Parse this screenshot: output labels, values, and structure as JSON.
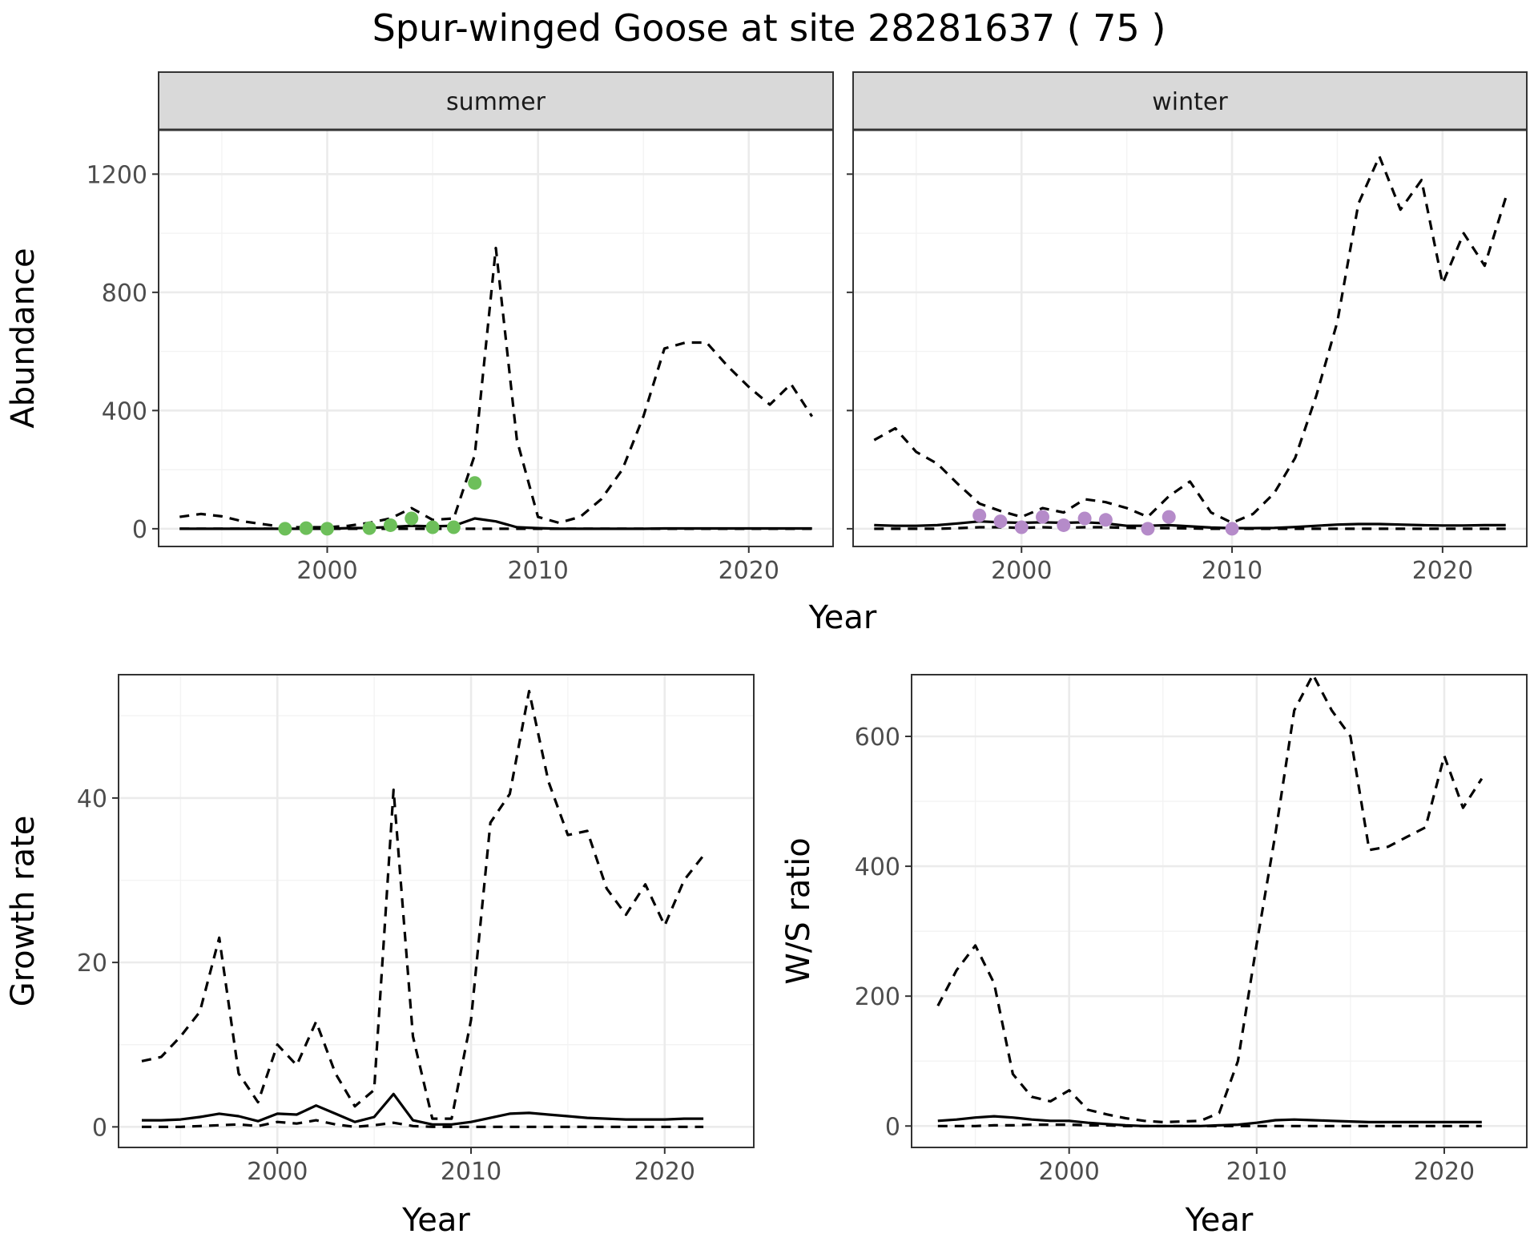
{
  "title": "Spur-winged Goose at site 28281637 ( 75 )",
  "colors": {
    "summer_points": "#6dbf5a",
    "winter_points": "#b58bc9",
    "lines": "#000000"
  },
  "chart_data": [
    {
      "type": "line",
      "facet": "summer",
      "xlabel": "Year",
      "ylabel": "Abundance",
      "xlim": [
        1992,
        2024
      ],
      "ylim": [
        -60,
        1350
      ],
      "xticks": [
        2000,
        2010,
        2020
      ],
      "yticks": [
        0,
        400,
        800,
        1200
      ],
      "grid": true,
      "series": [
        {
          "style": "dashed",
          "x": [
            1993,
            1994,
            1995,
            1996,
            1997,
            1998,
            1999,
            2000,
            2001,
            2002,
            2003,
            2004,
            2005,
            2006,
            2007,
            2008,
            2009,
            2010,
            2011,
            2012,
            2013,
            2014,
            2015,
            2016,
            2017,
            2018,
            2019,
            2020,
            2021,
            2022,
            2023
          ],
          "y": [
            40,
            50,
            42,
            25,
            15,
            5,
            5,
            5,
            10,
            20,
            35,
            70,
            30,
            35,
            250,
            950,
            300,
            40,
            20,
            40,
            100,
            200,
            380,
            610,
            630,
            630,
            550,
            480,
            420,
            490,
            380
          ]
        },
        {
          "style": "solid",
          "x": [
            1993,
            1994,
            1995,
            1996,
            1997,
            1998,
            1999,
            2000,
            2001,
            2002,
            2003,
            2004,
            2005,
            2006,
            2007,
            2008,
            2009,
            2010,
            2011,
            2012,
            2013,
            2014,
            2015,
            2016,
            2017,
            2018,
            2019,
            2020,
            2021,
            2022,
            2023
          ],
          "y": [
            0,
            0,
            0,
            0,
            0,
            0,
            0,
            0,
            2,
            3,
            6,
            10,
            8,
            10,
            35,
            25,
            5,
            2,
            0,
            0,
            0,
            0,
            0,
            1,
            1,
            1,
            1,
            1,
            1,
            1,
            1
          ]
        },
        {
          "style": "dashed",
          "x": [
            1993,
            1994,
            1995,
            1996,
            1997,
            1998,
            1999,
            2000,
            2001,
            2002,
            2003,
            2004,
            2005,
            2006,
            2007,
            2008,
            2009,
            2010,
            2011,
            2012,
            2013,
            2014,
            2015,
            2016,
            2017,
            2018,
            2019,
            2020,
            2021,
            2022,
            2023
          ],
          "y": [
            0,
            0,
            0,
            0,
            0,
            0,
            0,
            0,
            0,
            0,
            0,
            0,
            0,
            0,
            0,
            0,
            0,
            0,
            0,
            0,
            0,
            0,
            0,
            0,
            0,
            0,
            0,
            0,
            0,
            0,
            0
          ]
        }
      ],
      "points": {
        "x": [
          1998,
          1999,
          2000,
          2002,
          2003,
          2004,
          2005,
          2006,
          2007
        ],
        "y": [
          0,
          2,
          0,
          2,
          12,
          35,
          5,
          5,
          155
        ]
      }
    },
    {
      "type": "line",
      "facet": "winter",
      "xlabel": "Year",
      "ylabel": "",
      "xlim": [
        1992,
        2024
      ],
      "ylim": [
        -60,
        1350
      ],
      "xticks": [
        2000,
        2010,
        2020
      ],
      "yticks": [
        0,
        400,
        800,
        1200
      ],
      "grid": true,
      "series": [
        {
          "style": "dashed",
          "x": [
            1993,
            1994,
            1995,
            1996,
            1997,
            1998,
            1999,
            2000,
            2001,
            2002,
            2003,
            2004,
            2005,
            2006,
            2007,
            2008,
            2009,
            2010,
            2011,
            2012,
            2013,
            2014,
            2015,
            2016,
            2017,
            2018,
            2019,
            2020,
            2021,
            2022,
            2023
          ],
          "y": [
            300,
            340,
            260,
            220,
            150,
            85,
            60,
            40,
            70,
            55,
            100,
            90,
            70,
            40,
            110,
            160,
            55,
            20,
            50,
            120,
            240,
            450,
            700,
            1100,
            1260,
            1080,
            1180,
            830,
            1000,
            890,
            1120
          ]
        },
        {
          "style": "solid",
          "x": [
            1993,
            1994,
            1995,
            1996,
            1997,
            1998,
            1999,
            2000,
            2001,
            2002,
            2003,
            2004,
            2005,
            2006,
            2007,
            2008,
            2009,
            2010,
            2011,
            2012,
            2013,
            2014,
            2015,
            2016,
            2017,
            2018,
            2019,
            2020,
            2021,
            2022,
            2023
          ],
          "y": [
            12,
            10,
            10,
            12,
            18,
            25,
            22,
            20,
            22,
            20,
            22,
            18,
            10,
            10,
            12,
            8,
            4,
            2,
            2,
            3,
            6,
            10,
            14,
            16,
            16,
            14,
            12,
            11,
            11,
            12,
            12
          ]
        },
        {
          "style": "dashed",
          "x": [
            1993,
            1994,
            1995,
            1996,
            1997,
            1998,
            1999,
            2000,
            2001,
            2002,
            2003,
            2004,
            2005,
            2006,
            2007,
            2008,
            2009,
            2010,
            2011,
            2012,
            2013,
            2014,
            2015,
            2016,
            2017,
            2018,
            2019,
            2020,
            2021,
            2022,
            2023
          ],
          "y": [
            0,
            0,
            0,
            0,
            2,
            5,
            5,
            3,
            5,
            3,
            5,
            5,
            3,
            2,
            2,
            1,
            0,
            0,
            0,
            0,
            0,
            0,
            0,
            0,
            0,
            0,
            0,
            0,
            0,
            0,
            0
          ]
        }
      ],
      "points": {
        "x": [
          1998,
          1999,
          2000,
          2001,
          2002,
          2003,
          2004,
          2006,
          2007,
          2010
        ],
        "y": [
          45,
          25,
          5,
          40,
          12,
          35,
          30,
          0,
          40,
          0
        ]
      }
    },
    {
      "type": "line",
      "xlabel": "Year",
      "ylabel": "Growth rate",
      "xlim": [
        1991.8,
        2024.6
      ],
      "ylim": [
        -2.5,
        55
      ],
      "xticks": [
        2000,
        2010,
        2020
      ],
      "yticks": [
        0,
        20,
        40
      ],
      "grid": true,
      "series": [
        {
          "style": "dashed",
          "x": [
            1993,
            1994,
            1995,
            1996,
            1997,
            1998,
            1999,
            2000,
            2001,
            2002,
            2003,
            2004,
            2005,
            2006,
            2007,
            2008,
            2009,
            2010,
            2011,
            2012,
            2013,
            2014,
            2015,
            2016,
            2017,
            2018,
            2019,
            2020,
            2021,
            2022
          ],
          "y": [
            8,
            8.5,
            11,
            14,
            23,
            6.5,
            3,
            10,
            7.5,
            12.8,
            6.5,
            2.5,
            4.5,
            41,
            11,
            1,
            1,
            13,
            37,
            40.5,
            53,
            42,
            35.5,
            36,
            29,
            25.8,
            29.5,
            24.5,
            30,
            33
          ]
        },
        {
          "style": "solid",
          "x": [
            1993,
            1994,
            1995,
            1996,
            1997,
            1998,
            1999,
            2000,
            2001,
            2002,
            2003,
            2004,
            2005,
            2006,
            2007,
            2008,
            2009,
            2010,
            2011,
            2012,
            2013,
            2014,
            2015,
            2016,
            2017,
            2018,
            2019,
            2020,
            2021,
            2022
          ],
          "y": [
            0.8,
            0.8,
            0.9,
            1.2,
            1.6,
            1.3,
            0.7,
            1.6,
            1.5,
            2.6,
            1.6,
            0.6,
            1.2,
            4,
            0.8,
            0.3,
            0.3,
            0.6,
            1.1,
            1.6,
            1.7,
            1.5,
            1.3,
            1.1,
            1,
            0.9,
            0.9,
            0.9,
            1,
            1
          ]
        },
        {
          "style": "dashed",
          "x": [
            1993,
            1994,
            1995,
            1996,
            1997,
            1998,
            1999,
            2000,
            2001,
            2002,
            2003,
            2004,
            2005,
            2006,
            2007,
            2008,
            2009,
            2010,
            2011,
            2012,
            2013,
            2014,
            2015,
            2016,
            2017,
            2018,
            2019,
            2020,
            2021,
            2022
          ],
          "y": [
            0,
            0,
            0,
            0.1,
            0.2,
            0.3,
            0.1,
            0.6,
            0.4,
            0.8,
            0.3,
            0,
            0.2,
            0.5,
            0.1,
            0,
            0,
            0,
            0,
            0,
            0,
            0,
            0,
            0,
            0,
            0,
            0,
            0,
            0,
            0
          ]
        }
      ]
    },
    {
      "type": "line",
      "xlabel": "Year",
      "ylabel": "W/S ratio",
      "xlim": [
        1991.6,
        2024.4
      ],
      "ylim": [
        -33,
        695
      ],
      "xticks": [
        2000,
        2010,
        2020
      ],
      "yticks": [
        0,
        200,
        400,
        600
      ],
      "grid": true,
      "series": [
        {
          "style": "dashed",
          "x": [
            1993,
            1994,
            1995,
            1996,
            1997,
            1998,
            1999,
            2000,
            2001,
            2002,
            2003,
            2004,
            2005,
            2006,
            2007,
            2008,
            2009,
            2010,
            2011,
            2012,
            2013,
            2014,
            2015,
            2016,
            2017,
            2018,
            2019,
            2020,
            2021,
            2022
          ],
          "y": [
            185,
            240,
            278,
            220,
            80,
            45,
            38,
            55,
            25,
            18,
            12,
            8,
            6,
            7,
            8,
            20,
            100,
            280,
            450,
            640,
            695,
            640,
            600,
            425,
            430,
            445,
            460,
            570,
            490,
            535
          ]
        },
        {
          "style": "solid",
          "x": [
            1993,
            1994,
            1995,
            1996,
            1997,
            1998,
            1999,
            2000,
            2001,
            2002,
            2003,
            2004,
            2005,
            2006,
            2007,
            2008,
            2009,
            2010,
            2011,
            2012,
            2013,
            2014,
            2015,
            2016,
            2017,
            2018,
            2019,
            2020,
            2021,
            2022
          ],
          "y": [
            8,
            10,
            13,
            15,
            13,
            10,
            8,
            8,
            5,
            3,
            1,
            0,
            0,
            0,
            0,
            1,
            2,
            5,
            9,
            10,
            9,
            8,
            7,
            6,
            6,
            6,
            6,
            6,
            6,
            6
          ]
        },
        {
          "style": "dashed",
          "x": [
            1993,
            1994,
            1995,
            1996,
            1997,
            1998,
            1999,
            2000,
            2001,
            2002,
            2003,
            2004,
            2005,
            2006,
            2007,
            2008,
            2009,
            2010,
            2011,
            2012,
            2013,
            2014,
            2015,
            2016,
            2017,
            2018,
            2019,
            2020,
            2021,
            2022
          ],
          "y": [
            0,
            0,
            0,
            1,
            1,
            2,
            2,
            2,
            1,
            1,
            0,
            0,
            0,
            0,
            0,
            0,
            0,
            0,
            0,
            0,
            0,
            0,
            0,
            0,
            0,
            0,
            0,
            0,
            0,
            0
          ]
        }
      ]
    }
  ]
}
